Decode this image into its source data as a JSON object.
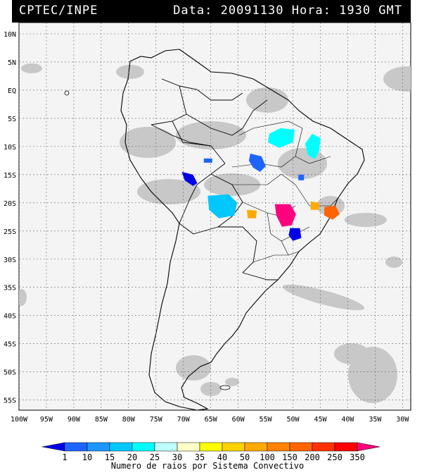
{
  "header": {
    "source": "CPTEC/INPE",
    "datetime": "Data: 20091130 Hora: 1930 GMT"
  },
  "map": {
    "lat_labels": [
      "10N",
      "5N",
      "EQ",
      "5S",
      "10S",
      "15S",
      "20S",
      "25S",
      "30S",
      "35S",
      "40S",
      "45S",
      "50S",
      "55S"
    ],
    "lon_labels": [
      "100W",
      "95W",
      "90W",
      "85W",
      "80W",
      "75W",
      "70W",
      "65W",
      "60W",
      "55W",
      "50W",
      "45W",
      "40W",
      "35W",
      "30W"
    ],
    "lat_values": [
      10,
      5,
      0,
      -5,
      -10,
      -15,
      -20,
      -25,
      -30,
      -35,
      -40,
      -45,
      -50,
      -55
    ],
    "lon_values": [
      -100,
      -95,
      -90,
      -85,
      -80,
      -75,
      -70,
      -65,
      -60,
      -55,
      -50,
      -45,
      -40,
      -35,
      -30
    ],
    "colors": {
      "background": "#f4f4f4",
      "cloud": "#c8c8c8",
      "border": "#000000",
      "grid": "#666666"
    },
    "systems": [
      {
        "id": "sys-tocantins",
        "lon": -46.5,
        "lat": -9.5,
        "class": "25",
        "color": "#00ffff"
      },
      {
        "id": "sys-para-south",
        "lon": -51.5,
        "lat": -8.5,
        "class": "25",
        "color": "#00ffff"
      },
      {
        "id": "sys-mato-grosso",
        "lon": -56.5,
        "lat": -12.5,
        "class": "10",
        "color": "#1e64ff"
      },
      {
        "id": "sys-rondonia",
        "lon": -65.5,
        "lat": -12.5,
        "class": "10",
        "color": "#1e64ff"
      },
      {
        "id": "sys-peru-bolivia",
        "lon": -69.0,
        "lat": -15.5,
        "class": "1",
        "color": "#0000e6"
      },
      {
        "id": "sys-bolivia-chaco",
        "lon": -63.0,
        "lat": -20.5,
        "class": "20",
        "color": "#00c8ff"
      },
      {
        "id": "sys-goias",
        "lon": -48.5,
        "lat": -15.5,
        "class": "10",
        "color": "#1e64ff"
      },
      {
        "id": "sys-sao-paulo",
        "lon": -51.5,
        "lat": -21.5,
        "class": "350",
        "color": "#ff007f"
      },
      {
        "id": "sys-minas-south",
        "lon": -46.0,
        "lat": -20.5,
        "class": "100",
        "color": "#ffaa00"
      },
      {
        "id": "sys-minas-east",
        "lon": -43.0,
        "lat": -21.5,
        "class": "200",
        "color": "#ff6400"
      },
      {
        "id": "sys-paraguay",
        "lon": -57.5,
        "lat": -22.0,
        "class": "100",
        "color": "#ffaa00"
      },
      {
        "id": "sys-parana",
        "lon": -49.5,
        "lat": -25.5,
        "class": "1",
        "color": "#0000e6"
      }
    ]
  },
  "colorbar": {
    "labels": [
      "1",
      "10",
      "15",
      "20",
      "25",
      "30",
      "35",
      "40",
      "50",
      "100",
      "150",
      "200",
      "250",
      "350"
    ],
    "colors": [
      "#0000e6",
      "#1e64ff",
      "#1e96ff",
      "#00c8ff",
      "#00ffff",
      "#bfffff",
      "#ffffc8",
      "#ffff00",
      "#ffd200",
      "#ffaa00",
      "#ff8200",
      "#ff6400",
      "#ff3200",
      "#ff0000",
      "#ff007f"
    ],
    "title": "Numero de raios por Sistema Convectivo"
  }
}
